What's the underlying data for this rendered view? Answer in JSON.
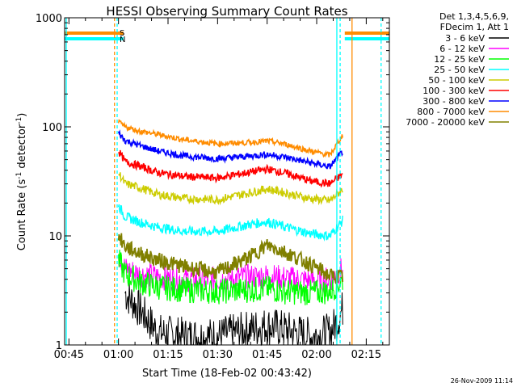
{
  "chart_data": {
    "type": "line",
    "title": "HESSI Observing Summary Count Rates",
    "xlabel": "Start Time (18-Feb-02 00:43:42)",
    "ylabel": "Count Rate (s",
    "ylabel_sup1": "-1",
    "ylabel_mid": " detector",
    "ylabel_sup2": "-1",
    "ylabel_end": ")",
    "y_scale": "log",
    "xlim_minutes": [
      43.7,
      142
    ],
    "ylim": [
      1,
      1000
    ],
    "x_ticks": [
      {
        "label": "00:45",
        "minutes": 45
      },
      {
        "label": "01:00",
        "minutes": 60
      },
      {
        "label": "01:15",
        "minutes": 75
      },
      {
        "label": "01:30",
        "minutes": 90
      },
      {
        "label": "01:45",
        "minutes": 105
      },
      {
        "label": "02:00",
        "minutes": 120
      },
      {
        "label": "02:15",
        "minutes": 135
      }
    ],
    "y_ticks": [
      {
        "label": "1",
        "value": 1
      },
      {
        "label": "10",
        "value": 10
      },
      {
        "label": "100",
        "value": 100
      },
      {
        "label": "1000",
        "value": 1000
      }
    ],
    "legend_header": [
      "Det 1,3,4,5,6,9,",
      "FDecim 1, Att 1"
    ],
    "legend_position": "right",
    "series": [
      {
        "name": "3 - 6 keV",
        "color": "#000000",
        "x": [
          62,
          67,
          72,
          80,
          90,
          100,
          105,
          110,
          118,
          124,
          126,
          128
        ],
        "y": [
          3,
          2,
          1.3,
          1.2,
          1.2,
          1.4,
          1.5,
          1.4,
          1.2,
          1.3,
          1.6,
          2.2
        ]
      },
      {
        "name": "6 - 12 keV",
        "color": "#ff00ff",
        "x": [
          60,
          62,
          66,
          72,
          80,
          90,
          100,
          105,
          110,
          118,
          124,
          128
        ],
        "y": [
          7,
          5,
          4.5,
          4.2,
          4,
          4,
          4.2,
          4.3,
          4.1,
          3.9,
          4,
          5
        ]
      },
      {
        "name": "12 - 25 keV",
        "color": "#00ff00",
        "x": [
          60,
          62,
          66,
          72,
          80,
          90,
          100,
          105,
          110,
          118,
          124,
          128
        ],
        "y": [
          6,
          4.5,
          3.8,
          3.4,
          3.2,
          3.1,
          3.2,
          3.3,
          3.1,
          3,
          3.1,
          4
        ]
      },
      {
        "name": "25 - 50 keV",
        "color": "#00ffff",
        "x": [
          60,
          62,
          66,
          72,
          80,
          90,
          100,
          105,
          110,
          118,
          124,
          128
        ],
        "y": [
          19,
          15,
          13.5,
          12,
          11,
          11,
          12.8,
          13.5,
          12.2,
          10.5,
          10,
          14
        ]
      },
      {
        "name": "50 - 100 keV",
        "color": "#cccc00",
        "x": [
          60,
          62,
          66,
          72,
          80,
          90,
          100,
          105,
          110,
          118,
          124,
          128
        ],
        "y": [
          38,
          30,
          28,
          24,
          22,
          21.5,
          25,
          27,
          25,
          22,
          21,
          27
        ]
      },
      {
        "name": "100 - 300 keV",
        "color": "#ff0000",
        "x": [
          60,
          62,
          66,
          72,
          80,
          90,
          100,
          105,
          110,
          118,
          124,
          128
        ],
        "y": [
          60,
          48,
          44,
          38,
          35,
          34,
          38.5,
          41,
          38,
          32,
          30,
          37
        ]
      },
      {
        "name": "300 - 800 keV",
        "color": "#0000ff",
        "x": [
          60,
          62,
          66,
          72,
          80,
          90,
          100,
          105,
          110,
          118,
          124,
          128
        ],
        "y": [
          88,
          75,
          68,
          60,
          54,
          51,
          54,
          56,
          53,
          47,
          43,
          60
        ]
      },
      {
        "name": "800 - 7000 keV",
        "color": "#ff8c00",
        "x": [
          60,
          62,
          66,
          72,
          80,
          90,
          100,
          105,
          110,
          118,
          124,
          128
        ],
        "y": [
          110,
          100,
          92,
          85,
          76,
          70,
          72,
          74,
          70,
          60,
          55,
          85
        ]
      },
      {
        "name": "7000 - 20000 keV",
        "color": "#808000",
        "x": [
          60,
          62,
          66,
          72,
          80,
          90,
          100,
          105,
          110,
          118,
          124,
          128
        ],
        "y": [
          10,
          8,
          7,
          6,
          5.2,
          4.6,
          6.5,
          8.2,
          7.2,
          5.5,
          4.3,
          4.2
        ]
      }
    ],
    "annotations": [
      {
        "label": "S",
        "color": "#ff8c00"
      },
      {
        "label": "N",
        "color": "#00ffff"
      }
    ],
    "footer_timestamp": "26-Nov-2009 11:14"
  }
}
